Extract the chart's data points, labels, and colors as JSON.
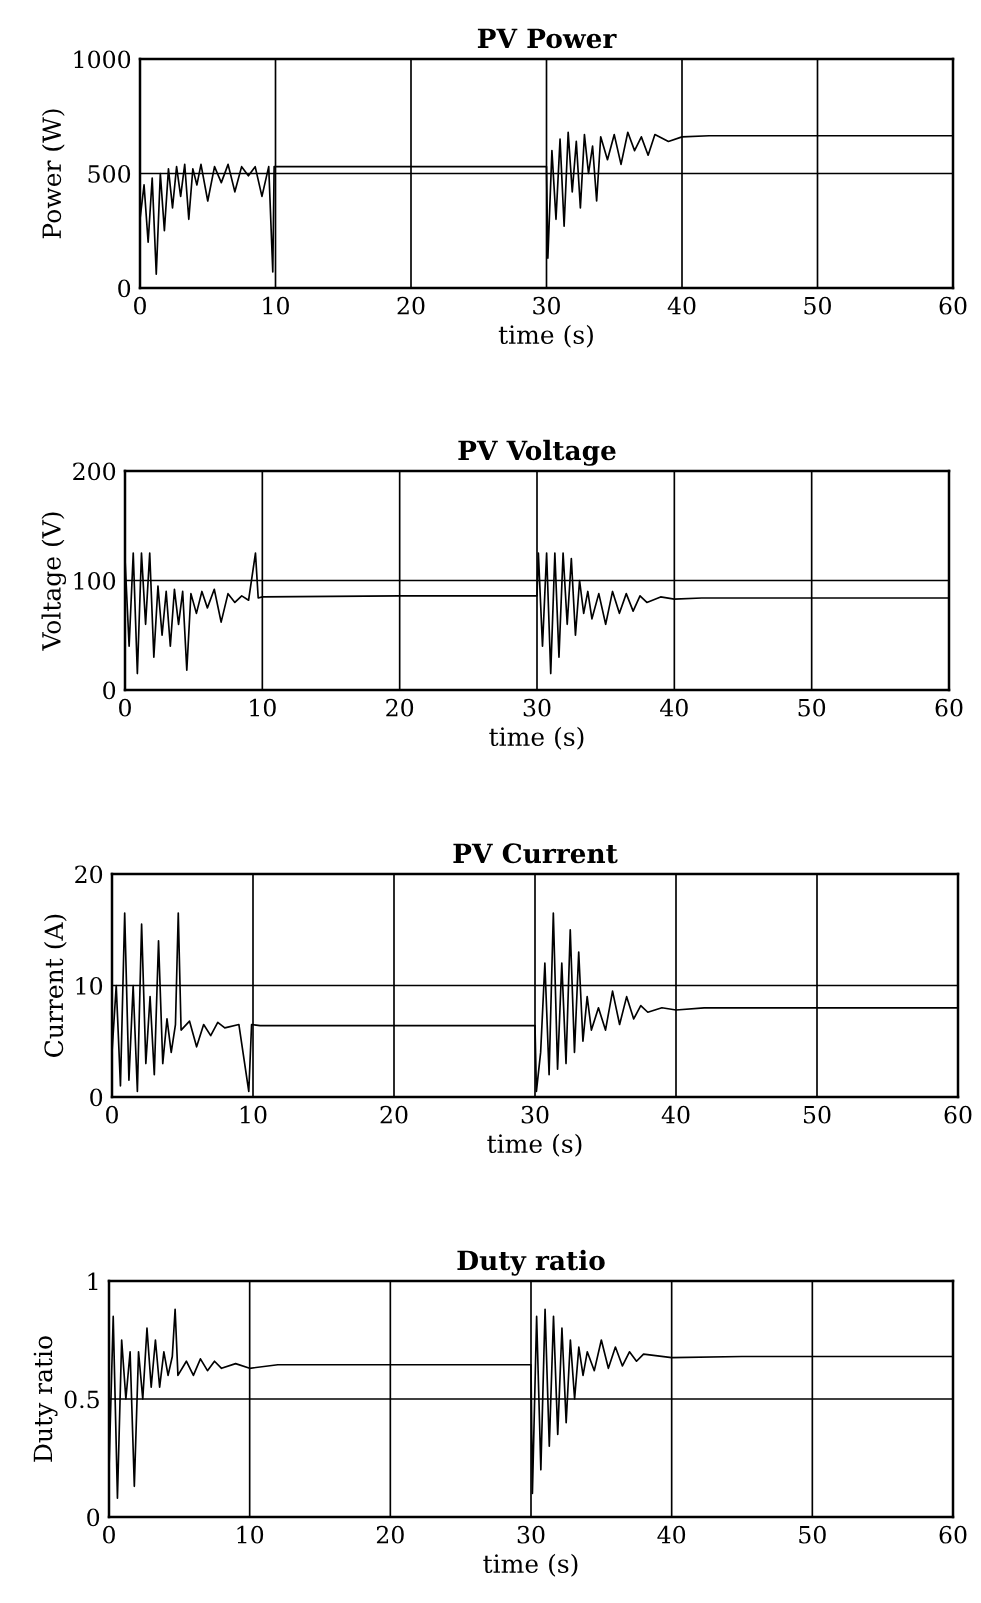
{
  "chart_data": [
    {
      "type": "line",
      "title": "PV Power",
      "xlabel": "time (s)",
      "ylabel": "Power (W)",
      "xlim": [
        0,
        60
      ],
      "xticks": [
        0,
        10,
        20,
        30,
        40,
        50,
        60
      ],
      "ylim": [
        0,
        1000
      ],
      "yticks": [
        0,
        500,
        1000
      ],
      "grid": true,
      "legend": false,
      "marker": "none",
      "line_style": "solid",
      "x": [
        0,
        0.3,
        0.6,
        0.9,
        1.2,
        1.5,
        1.8,
        2.1,
        2.4,
        2.7,
        3,
        3.3,
        3.6,
        3.9,
        4.2,
        4.5,
        5,
        5.5,
        6,
        6.5,
        7,
        7.5,
        8,
        8.5,
        9,
        9.5,
        9.8,
        9.9,
        11,
        30,
        30.1,
        30.4,
        30.7,
        31,
        31.3,
        31.6,
        31.9,
        32.2,
        32.5,
        32.8,
        33.1,
        33.4,
        33.7,
        34,
        34.5,
        35,
        35.5,
        36,
        36.5,
        37,
        37.5,
        38,
        39,
        40,
        42,
        60
      ],
      "series": [
        {
          "color": "#000000",
          "values": [
            300,
            450,
            200,
            480,
            60,
            500,
            250,
            520,
            350,
            530,
            400,
            540,
            300,
            520,
            450,
            540,
            380,
            530,
            460,
            540,
            420,
            530,
            490,
            530,
            400,
            530,
            70,
            530,
            530,
            530,
            130,
            600,
            300,
            650,
            270,
            680,
            420,
            640,
            350,
            670,
            500,
            620,
            380,
            660,
            560,
            670,
            540,
            680,
            600,
            660,
            580,
            670,
            640,
            660,
            665,
            665
          ]
        }
      ]
    },
    {
      "type": "line",
      "title": "PV Voltage",
      "xlabel": "time (s)",
      "ylabel": "Voltage (V)",
      "xlim": [
        0,
        60
      ],
      "xticks": [
        0,
        10,
        20,
        30,
        40,
        50,
        60
      ],
      "ylim": [
        0,
        200
      ],
      "yticks": [
        0,
        100,
        200
      ],
      "grid": true,
      "legend": false,
      "marker": "none",
      "line_style": "solid",
      "x": [
        0,
        0.3,
        0.6,
        0.9,
        1.2,
        1.5,
        1.8,
        2.1,
        2.4,
        2.7,
        3,
        3.3,
        3.6,
        3.9,
        4.2,
        4.5,
        4.8,
        5.2,
        5.6,
        6,
        6.5,
        7,
        7.5,
        8,
        8.5,
        9,
        9.5,
        9.7,
        10,
        20,
        30,
        30.1,
        30.4,
        30.7,
        31,
        31.3,
        31.6,
        31.9,
        32.2,
        32.5,
        32.8,
        33.1,
        33.4,
        33.7,
        34,
        34.5,
        35,
        35.5,
        36,
        36.5,
        37,
        37.5,
        38,
        39,
        40,
        42,
        60
      ],
      "series": [
        {
          "color": "#000000",
          "values": [
            120,
            40,
            125,
            15,
            125,
            60,
            125,
            30,
            95,
            50,
            90,
            40,
            92,
            60,
            90,
            18,
            88,
            70,
            90,
            75,
            92,
            62,
            88,
            80,
            86,
            82,
            125,
            84,
            85,
            86,
            86,
            125,
            40,
            125,
            15,
            125,
            30,
            125,
            60,
            120,
            50,
            100,
            70,
            90,
            65,
            88,
            60,
            90,
            70,
            88,
            72,
            86,
            80,
            85,
            83,
            84,
            84
          ]
        }
      ]
    },
    {
      "type": "line",
      "title": "PV Current",
      "xlabel": "time (s)",
      "ylabel": "Current (A)",
      "xlim": [
        0,
        60
      ],
      "xticks": [
        0,
        10,
        20,
        30,
        40,
        50,
        60
      ],
      "ylim": [
        0,
        20
      ],
      "yticks": [
        0,
        10,
        20
      ],
      "grid": true,
      "legend": false,
      "marker": "none",
      "line_style": "solid",
      "x": [
        0,
        0.3,
        0.6,
        0.9,
        1.2,
        1.5,
        1.8,
        2.1,
        2.4,
        2.7,
        3,
        3.3,
        3.6,
        3.9,
        4.2,
        4.5,
        4.7,
        4.9,
        5.5,
        6,
        6.5,
        7,
        7.5,
        8,
        9,
        9.7,
        9.9,
        10.5,
        20,
        30,
        30.1,
        30.4,
        30.7,
        31,
        31.3,
        31.6,
        31.9,
        32.2,
        32.5,
        32.8,
        33.1,
        33.4,
        33.7,
        34,
        34.5,
        35,
        35.5,
        36,
        36.5,
        37,
        37.5,
        38,
        39,
        40,
        42,
        60
      ],
      "series": [
        {
          "color": "#000000",
          "values": [
            4,
            10,
            1,
            16.5,
            1.5,
            10,
            0.5,
            15.5,
            3,
            9,
            2,
            14,
            3,
            7,
            4,
            6.5,
            16.5,
            6,
            6.8,
            4.5,
            6.5,
            5.5,
            6.7,
            6.2,
            6.5,
            0.5,
            6.5,
            6.4,
            6.4,
            6.4,
            0.5,
            4,
            12,
            2,
            16.5,
            2.5,
            12,
            3,
            15,
            4,
            13,
            5,
            9,
            6,
            8,
            6,
            9.5,
            6.5,
            9,
            7,
            8.2,
            7.6,
            8,
            7.8,
            8,
            8
          ]
        }
      ]
    },
    {
      "type": "line",
      "title": "Duty ratio",
      "xlabel": "time (s)",
      "ylabel": "Duty ratio",
      "xlim": [
        0,
        60
      ],
      "xticks": [
        0,
        10,
        20,
        30,
        40,
        50,
        60
      ],
      "ylim": [
        0,
        1
      ],
      "yticks": [
        0,
        0.5,
        1
      ],
      "grid": true,
      "legend": false,
      "marker": "none",
      "line_style": "solid",
      "x": [
        0,
        0.3,
        0.6,
        0.9,
        1.2,
        1.5,
        1.8,
        2.1,
        2.4,
        2.7,
        3,
        3.3,
        3.6,
        3.9,
        4.2,
        4.5,
        4.7,
        4.9,
        5.5,
        6,
        6.5,
        7,
        7.5,
        8,
        9,
        10,
        12,
        20,
        30,
        30.1,
        30.4,
        30.7,
        31,
        31.3,
        31.6,
        31.9,
        32.2,
        32.5,
        32.8,
        33.1,
        33.4,
        33.7,
        34,
        34.5,
        35,
        35.5,
        36,
        36.5,
        37,
        37.5,
        38,
        40,
        45,
        60
      ],
      "series": [
        {
          "color": "#000000",
          "values": [
            0.2,
            0.85,
            0.08,
            0.75,
            0.5,
            0.7,
            0.13,
            0.7,
            0.5,
            0.8,
            0.55,
            0.75,
            0.55,
            0.7,
            0.6,
            0.68,
            0.88,
            0.6,
            0.66,
            0.6,
            0.67,
            0.62,
            0.66,
            0.63,
            0.65,
            0.63,
            0.645,
            0.645,
            0.645,
            0.1,
            0.85,
            0.2,
            0.88,
            0.3,
            0.85,
            0.35,
            0.8,
            0.4,
            0.75,
            0.5,
            0.72,
            0.6,
            0.7,
            0.62,
            0.75,
            0.63,
            0.72,
            0.64,
            0.7,
            0.66,
            0.69,
            0.675,
            0.68,
            0.68
          ]
        }
      ]
    }
  ]
}
